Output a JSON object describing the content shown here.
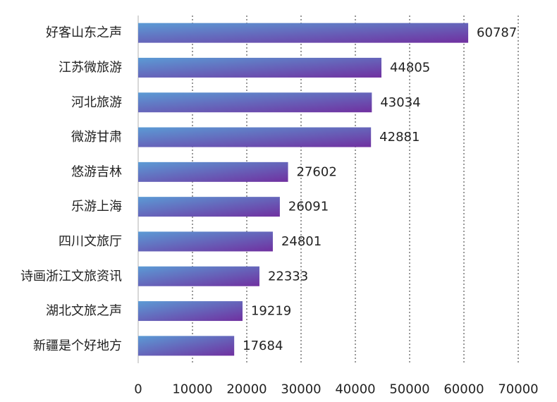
{
  "chart_data": {
    "type": "bar",
    "orientation": "horizontal",
    "categories": [
      "好客山东之声",
      "江苏微旅游",
      "河北旅游",
      "微游甘肃",
      "悠游吉林",
      "乐游上海",
      "四川文旅厅",
      "诗画浙江文旅资讯",
      "湖北文旅之声",
      "新疆是个好地方"
    ],
    "values": [
      60787,
      44805,
      43034,
      42881,
      27602,
      26091,
      24801,
      22333,
      19219,
      17684
    ],
    "xlim": [
      0,
      70000
    ],
    "xticks": [
      0,
      10000,
      20000,
      30000,
      40000,
      50000,
      60000,
      70000
    ],
    "grid": "vertical dotted",
    "title": "",
    "xlabel": "",
    "ylabel": "",
    "colors": {
      "bar_gradient_start": "#5b9bd5",
      "bar_gradient_end": "#7030a0",
      "grid": "#555555",
      "axis": "#cccccc",
      "text": "#222222"
    }
  }
}
